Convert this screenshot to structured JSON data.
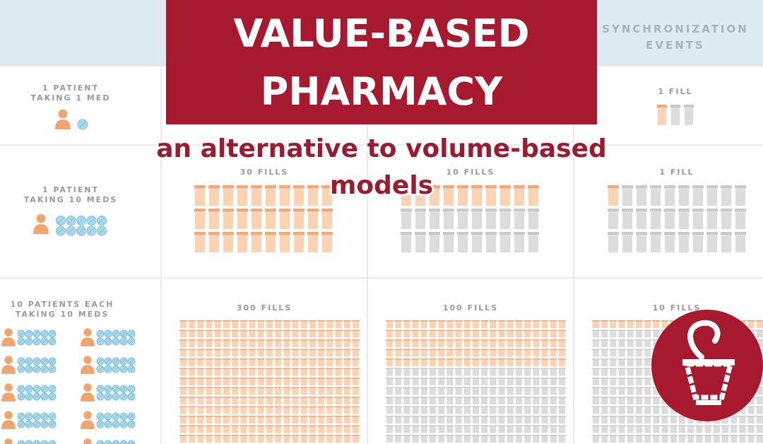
{
  "banner": {
    "title_lines": [
      "VALUE-BASED",
      "PHARMACY"
    ],
    "subtitle_lines": [
      "an alternative to volume-based",
      "models"
    ]
  },
  "table": {
    "column_header": [
      "SYNCHRONIZATION",
      "EVENTS"
    ],
    "rows": [
      {
        "label": [
          "1 PATIENT",
          "TAKING 1 MED"
        ],
        "cells": [
          "1 FILL"
        ]
      },
      {
        "label": [
          "1 PATIENT",
          "TAKING 10 MEDS"
        ],
        "cells": [
          "30 FILLS",
          "10 FILLS",
          "1 FILL"
        ]
      },
      {
        "label": [
          "10 PATIENTS EACH",
          "TAKING 10 MEDS"
        ],
        "cells": [
          "300 FILLS",
          "100 FILLS",
          "10 FILLS"
        ]
      }
    ]
  }
}
